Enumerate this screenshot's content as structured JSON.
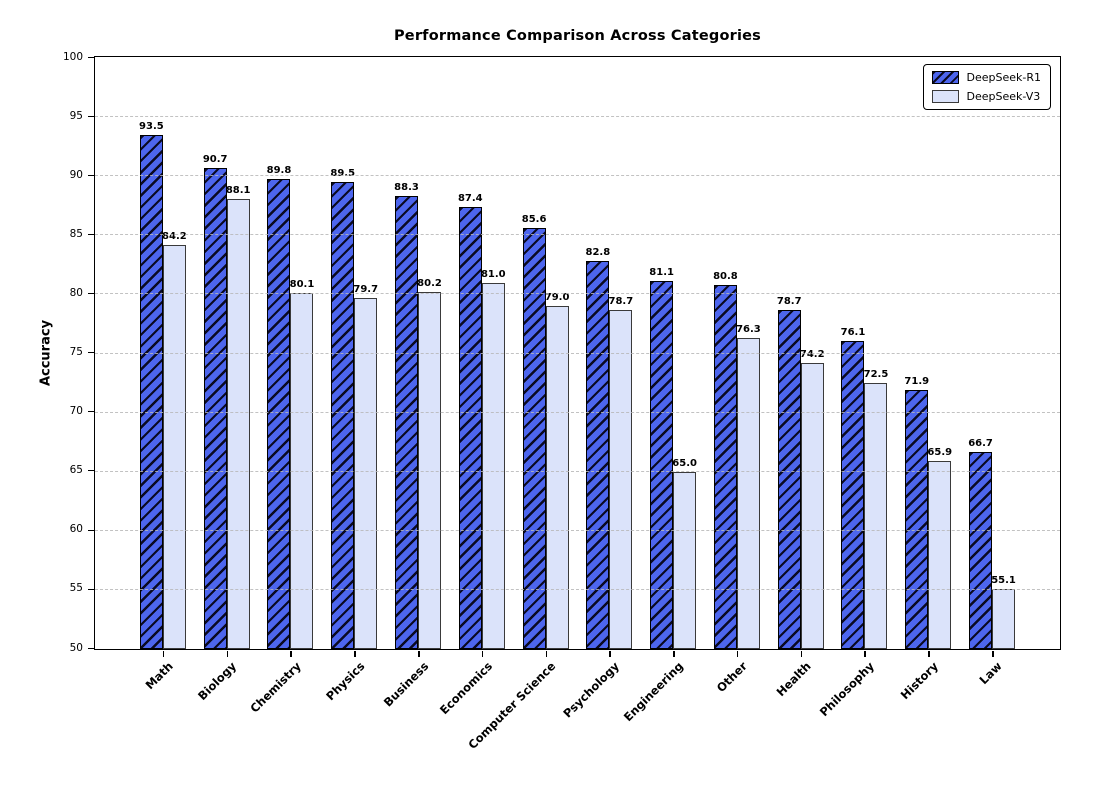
{
  "chart_data": {
    "type": "bar",
    "title": "Performance Comparison Across Categories",
    "xlabel": "",
    "ylabel": "Accuracy",
    "ylim": [
      50,
      100
    ],
    "ytick_step": 5,
    "grid": "horizontal-dashed",
    "legend_position": "upper-right",
    "bar_value_labels": true,
    "categories": [
      "Math",
      "Biology",
      "Chemistry",
      "Physics",
      "Business",
      "Economics",
      "Computer Science",
      "Psychology",
      "Engineering",
      "Other",
      "Health",
      "Philosophy",
      "History",
      "Law"
    ],
    "series": [
      {
        "name": "DeepSeek-R1",
        "fill_color": "#4d66ee",
        "edge_color": "#000000",
        "hatch": "//",
        "values": [
          93.5,
          90.7,
          89.8,
          89.5,
          88.3,
          87.4,
          85.6,
          82.8,
          81.1,
          80.8,
          78.7,
          76.1,
          71.9,
          66.7
        ]
      },
      {
        "name": "DeepSeek-V3",
        "fill_color": "#dbe3fa",
        "edge_color": "#3a3a3a",
        "hatch": null,
        "values": [
          84.2,
          88.1,
          80.1,
          79.7,
          80.2,
          81.0,
          79.0,
          78.7,
          65.0,
          76.3,
          74.2,
          72.5,
          65.9,
          55.1
        ]
      }
    ],
    "yticks": [
      50,
      55,
      60,
      65,
      70,
      75,
      80,
      85,
      90,
      95,
      100
    ],
    "grid_color": "#b7b7b7"
  }
}
